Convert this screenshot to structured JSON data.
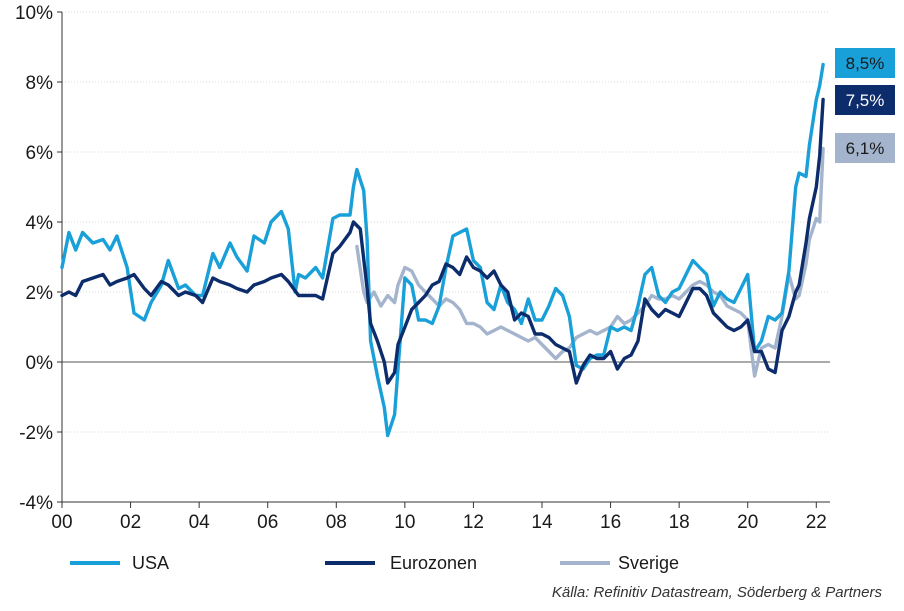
{
  "colors": {
    "usa": "#1aa0d8",
    "eurozonen": "#0d2c6b",
    "sverige": "#a3b4cc",
    "grid": "#d9d9d9",
    "zero": "#555555"
  },
  "source": "Källa: Refinitiv Datastream, Söderberg & Partners",
  "chart_data": {
    "type": "line",
    "title": "",
    "xlabel": "",
    "ylabel": "",
    "xlim": [
      2000,
      2022.4
    ],
    "ylim": [
      -4,
      10
    ],
    "x_ticks": [
      {
        "value": 2000,
        "label": "00"
      },
      {
        "value": 2002,
        "label": "02"
      },
      {
        "value": 2004,
        "label": "04"
      },
      {
        "value": 2006,
        "label": "06"
      },
      {
        "value": 2008,
        "label": "08"
      },
      {
        "value": 2010,
        "label": "10"
      },
      {
        "value": 2012,
        "label": "12"
      },
      {
        "value": 2014,
        "label": "14"
      },
      {
        "value": 2016,
        "label": "16"
      },
      {
        "value": 2018,
        "label": "18"
      },
      {
        "value": 2020,
        "label": "20"
      },
      {
        "value": 2022,
        "label": "22"
      }
    ],
    "y_ticks": [
      {
        "value": 10,
        "label": "10%"
      },
      {
        "value": 8,
        "label": "8%"
      },
      {
        "value": 6,
        "label": "6%"
      },
      {
        "value": 4,
        "label": "4%"
      },
      {
        "value": 2,
        "label": "2%"
      },
      {
        "value": 0,
        "label": "0%"
      },
      {
        "value": -2,
        "label": "-2%"
      },
      {
        "value": -4,
        "label": "-4%"
      }
    ],
    "grid": "horizontal",
    "legend_position": "bottom",
    "series": [
      {
        "name": "USA",
        "color": "#1aa0d8",
        "end_label": "8,5%",
        "points": [
          [
            2000,
            2.7
          ],
          [
            2000.2,
            3.7
          ],
          [
            2000.4,
            3.2
          ],
          [
            2000.6,
            3.7
          ],
          [
            2000.9,
            3.4
          ],
          [
            2001.2,
            3.5
          ],
          [
            2001.4,
            3.2
          ],
          [
            2001.6,
            3.6
          ],
          [
            2001.9,
            2.7
          ],
          [
            2002.1,
            1.4
          ],
          [
            2002.4,
            1.2
          ],
          [
            2002.6,
            1.7
          ],
          [
            2002.9,
            2.2
          ],
          [
            2003.1,
            2.9
          ],
          [
            2003.4,
            2.1
          ],
          [
            2003.6,
            2.2
          ],
          [
            2003.9,
            1.9
          ],
          [
            2004.1,
            1.9
          ],
          [
            2004.4,
            3.1
          ],
          [
            2004.6,
            2.7
          ],
          [
            2004.9,
            3.4
          ],
          [
            2005.1,
            3.0
          ],
          [
            2005.4,
            2.6
          ],
          [
            2005.6,
            3.6
          ],
          [
            2005.9,
            3.4
          ],
          [
            2006.1,
            4.0
          ],
          [
            2006.4,
            4.3
          ],
          [
            2006.6,
            3.8
          ],
          [
            2006.8,
            2.0
          ],
          [
            2006.9,
            2.5
          ],
          [
            2007.1,
            2.4
          ],
          [
            2007.4,
            2.7
          ],
          [
            2007.6,
            2.4
          ],
          [
            2007.9,
            4.1
          ],
          [
            2008.1,
            4.2
          ],
          [
            2008.4,
            4.2
          ],
          [
            2008.5,
            5.0
          ],
          [
            2008.6,
            5.5
          ],
          [
            2008.8,
            4.9
          ],
          [
            2008.9,
            3.5
          ],
          [
            2009.0,
            0.6
          ],
          [
            2009.2,
            -0.4
          ],
          [
            2009.4,
            -1.3
          ],
          [
            2009.5,
            -2.1
          ],
          [
            2009.7,
            -1.5
          ],
          [
            2009.8,
            -0.2
          ],
          [
            2010.0,
            2.4
          ],
          [
            2010.2,
            2.2
          ],
          [
            2010.4,
            1.2
          ],
          [
            2010.6,
            1.2
          ],
          [
            2010.8,
            1.1
          ],
          [
            2011.0,
            1.6
          ],
          [
            2011.2,
            2.7
          ],
          [
            2011.4,
            3.6
          ],
          [
            2011.6,
            3.7
          ],
          [
            2011.8,
            3.8
          ],
          [
            2012.0,
            2.9
          ],
          [
            2012.2,
            2.7
          ],
          [
            2012.4,
            1.7
          ],
          [
            2012.6,
            1.5
          ],
          [
            2012.8,
            2.2
          ],
          [
            2013.0,
            1.7
          ],
          [
            2013.2,
            1.5
          ],
          [
            2013.4,
            1.1
          ],
          [
            2013.6,
            1.8
          ],
          [
            2013.8,
            1.2
          ],
          [
            2014.0,
            1.2
          ],
          [
            2014.2,
            1.6
          ],
          [
            2014.4,
            2.1
          ],
          [
            2014.6,
            1.9
          ],
          [
            2014.8,
            1.3
          ],
          [
            2015.0,
            -0.1
          ],
          [
            2015.2,
            -0.2
          ],
          [
            2015.4,
            0.1
          ],
          [
            2015.6,
            0.2
          ],
          [
            2015.8,
            0.2
          ],
          [
            2016.0,
            1.0
          ],
          [
            2016.2,
            0.9
          ],
          [
            2016.4,
            1.0
          ],
          [
            2016.6,
            0.9
          ],
          [
            2016.8,
            1.6
          ],
          [
            2017.0,
            2.5
          ],
          [
            2017.2,
            2.7
          ],
          [
            2017.4,
            1.9
          ],
          [
            2017.6,
            1.7
          ],
          [
            2017.8,
            2.0
          ],
          [
            2018.0,
            2.1
          ],
          [
            2018.2,
            2.5
          ],
          [
            2018.4,
            2.9
          ],
          [
            2018.6,
            2.7
          ],
          [
            2018.8,
            2.5
          ],
          [
            2019.0,
            1.6
          ],
          [
            2019.2,
            2.0
          ],
          [
            2019.4,
            1.8
          ],
          [
            2019.6,
            1.7
          ],
          [
            2019.8,
            2.1
          ],
          [
            2020.0,
            2.5
          ],
          [
            2020.2,
            0.3
          ],
          [
            2020.4,
            0.6
          ],
          [
            2020.6,
            1.3
          ],
          [
            2020.8,
            1.2
          ],
          [
            2021.0,
            1.4
          ],
          [
            2021.2,
            2.6
          ],
          [
            2021.4,
            5.0
          ],
          [
            2021.5,
            5.4
          ],
          [
            2021.7,
            5.3
          ],
          [
            2021.8,
            6.2
          ],
          [
            2022.0,
            7.5
          ],
          [
            2022.1,
            7.9
          ],
          [
            2022.2,
            8.5
          ]
        ]
      },
      {
        "name": "Eurozonen",
        "color": "#0d2c6b",
        "end_label": "7,5%",
        "points": [
          [
            2000,
            1.9
          ],
          [
            2000.2,
            2.0
          ],
          [
            2000.4,
            1.9
          ],
          [
            2000.6,
            2.3
          ],
          [
            2000.9,
            2.4
          ],
          [
            2001.2,
            2.5
          ],
          [
            2001.4,
            2.2
          ],
          [
            2001.6,
            2.3
          ],
          [
            2001.9,
            2.4
          ],
          [
            2002.1,
            2.5
          ],
          [
            2002.4,
            2.1
          ],
          [
            2002.6,
            1.9
          ],
          [
            2002.9,
            2.3
          ],
          [
            2003.1,
            2.2
          ],
          [
            2003.4,
            1.9
          ],
          [
            2003.6,
            2.0
          ],
          [
            2003.9,
            1.9
          ],
          [
            2004.1,
            1.7
          ],
          [
            2004.4,
            2.4
          ],
          [
            2004.6,
            2.3
          ],
          [
            2004.9,
            2.2
          ],
          [
            2005.1,
            2.1
          ],
          [
            2005.4,
            2.0
          ],
          [
            2005.6,
            2.2
          ],
          [
            2005.9,
            2.3
          ],
          [
            2006.1,
            2.4
          ],
          [
            2006.4,
            2.5
          ],
          [
            2006.6,
            2.3
          ],
          [
            2006.9,
            1.9
          ],
          [
            2007.1,
            1.9
          ],
          [
            2007.4,
            1.9
          ],
          [
            2007.6,
            1.8
          ],
          [
            2007.9,
            3.1
          ],
          [
            2008.1,
            3.3
          ],
          [
            2008.4,
            3.7
          ],
          [
            2008.5,
            4.0
          ],
          [
            2008.7,
            3.8
          ],
          [
            2008.9,
            2.1
          ],
          [
            2009.0,
            1.1
          ],
          [
            2009.2,
            0.6
          ],
          [
            2009.4,
            0.0
          ],
          [
            2009.5,
            -0.6
          ],
          [
            2009.7,
            -0.3
          ],
          [
            2009.8,
            0.5
          ],
          [
            2010.0,
            1.0
          ],
          [
            2010.2,
            1.5
          ],
          [
            2010.4,
            1.7
          ],
          [
            2010.6,
            1.9
          ],
          [
            2010.8,
            2.2
          ],
          [
            2011.0,
            2.3
          ],
          [
            2011.2,
            2.8
          ],
          [
            2011.4,
            2.7
          ],
          [
            2011.6,
            2.5
          ],
          [
            2011.8,
            3.0
          ],
          [
            2012.0,
            2.7
          ],
          [
            2012.2,
            2.6
          ],
          [
            2012.4,
            2.4
          ],
          [
            2012.6,
            2.6
          ],
          [
            2012.8,
            2.2
          ],
          [
            2013.0,
            2.0
          ],
          [
            2013.2,
            1.2
          ],
          [
            2013.4,
            1.4
          ],
          [
            2013.6,
            1.3
          ],
          [
            2013.8,
            0.8
          ],
          [
            2014.0,
            0.8
          ],
          [
            2014.2,
            0.7
          ],
          [
            2014.4,
            0.5
          ],
          [
            2014.6,
            0.4
          ],
          [
            2014.8,
            0.3
          ],
          [
            2015.0,
            -0.6
          ],
          [
            2015.2,
            -0.1
          ],
          [
            2015.4,
            0.2
          ],
          [
            2015.6,
            0.1
          ],
          [
            2015.8,
            0.1
          ],
          [
            2016.0,
            0.3
          ],
          [
            2016.2,
            -0.2
          ],
          [
            2016.4,
            0.1
          ],
          [
            2016.6,
            0.2
          ],
          [
            2016.8,
            0.6
          ],
          [
            2017.0,
            1.8
          ],
          [
            2017.2,
            1.5
          ],
          [
            2017.4,
            1.3
          ],
          [
            2017.6,
            1.5
          ],
          [
            2017.8,
            1.4
          ],
          [
            2018.0,
            1.3
          ],
          [
            2018.2,
            1.7
          ],
          [
            2018.4,
            2.1
          ],
          [
            2018.6,
            2.1
          ],
          [
            2018.8,
            1.9
          ],
          [
            2019.0,
            1.4
          ],
          [
            2019.2,
            1.2
          ],
          [
            2019.4,
            1.0
          ],
          [
            2019.6,
            0.9
          ],
          [
            2019.8,
            1.0
          ],
          [
            2020.0,
            1.2
          ],
          [
            2020.2,
            0.3
          ],
          [
            2020.4,
            0.3
          ],
          [
            2020.6,
            -0.2
          ],
          [
            2020.8,
            -0.3
          ],
          [
            2021.0,
            0.9
          ],
          [
            2021.2,
            1.3
          ],
          [
            2021.4,
            2.0
          ],
          [
            2021.5,
            2.2
          ],
          [
            2021.7,
            3.4
          ],
          [
            2021.8,
            4.1
          ],
          [
            2022.0,
            5.0
          ],
          [
            2022.1,
            5.9
          ],
          [
            2022.2,
            7.5
          ]
        ]
      },
      {
        "name": "Sverige",
        "color": "#a3b4cc",
        "end_label": "6,1%",
        "points": [
          [
            2008.6,
            3.3
          ],
          [
            2008.8,
            2.0
          ],
          [
            2008.9,
            1.7
          ],
          [
            2009.1,
            2.0
          ],
          [
            2009.3,
            1.6
          ],
          [
            2009.5,
            1.9
          ],
          [
            2009.7,
            1.7
          ],
          [
            2009.8,
            2.2
          ],
          [
            2010.0,
            2.7
          ],
          [
            2010.2,
            2.6
          ],
          [
            2010.4,
            2.2
          ],
          [
            2010.6,
            2.0
          ],
          [
            2010.8,
            1.8
          ],
          [
            2011.0,
            1.6
          ],
          [
            2011.2,
            1.8
          ],
          [
            2011.4,
            1.7
          ],
          [
            2011.6,
            1.5
          ],
          [
            2011.8,
            1.1
          ],
          [
            2012.0,
            1.1
          ],
          [
            2012.2,
            1.0
          ],
          [
            2012.4,
            0.8
          ],
          [
            2012.6,
            0.9
          ],
          [
            2012.8,
            1.0
          ],
          [
            2013.0,
            0.9
          ],
          [
            2013.2,
            0.8
          ],
          [
            2013.4,
            0.7
          ],
          [
            2013.6,
            0.6
          ],
          [
            2013.8,
            0.7
          ],
          [
            2014.0,
            0.5
          ],
          [
            2014.2,
            0.3
          ],
          [
            2014.4,
            0.1
          ],
          [
            2014.6,
            0.3
          ],
          [
            2014.8,
            0.4
          ],
          [
            2015.0,
            0.7
          ],
          [
            2015.2,
            0.8
          ],
          [
            2015.4,
            0.9
          ],
          [
            2015.6,
            0.8
          ],
          [
            2015.8,
            0.9
          ],
          [
            2016.0,
            1.0
          ],
          [
            2016.2,
            1.3
          ],
          [
            2016.4,
            1.1
          ],
          [
            2016.6,
            1.2
          ],
          [
            2016.8,
            1.4
          ],
          [
            2017.0,
            1.6
          ],
          [
            2017.2,
            1.9
          ],
          [
            2017.4,
            1.8
          ],
          [
            2017.6,
            1.8
          ],
          [
            2017.8,
            1.9
          ],
          [
            2018.0,
            1.8
          ],
          [
            2018.2,
            2.0
          ],
          [
            2018.4,
            2.2
          ],
          [
            2018.6,
            2.3
          ],
          [
            2018.8,
            2.2
          ],
          [
            2019.0,
            2.0
          ],
          [
            2019.2,
            1.9
          ],
          [
            2019.4,
            1.6
          ],
          [
            2019.6,
            1.5
          ],
          [
            2019.8,
            1.4
          ],
          [
            2020.0,
            1.2
          ],
          [
            2020.2,
            -0.4
          ],
          [
            2020.4,
            0.4
          ],
          [
            2020.6,
            0.5
          ],
          [
            2020.8,
            0.4
          ],
          [
            2021.0,
            1.3
          ],
          [
            2021.2,
            2.5
          ],
          [
            2021.4,
            1.8
          ],
          [
            2021.5,
            1.9
          ],
          [
            2021.7,
            2.8
          ],
          [
            2021.8,
            3.5
          ],
          [
            2022.0,
            4.1
          ],
          [
            2022.1,
            4.0
          ],
          [
            2022.2,
            6.1
          ]
        ]
      }
    ]
  }
}
